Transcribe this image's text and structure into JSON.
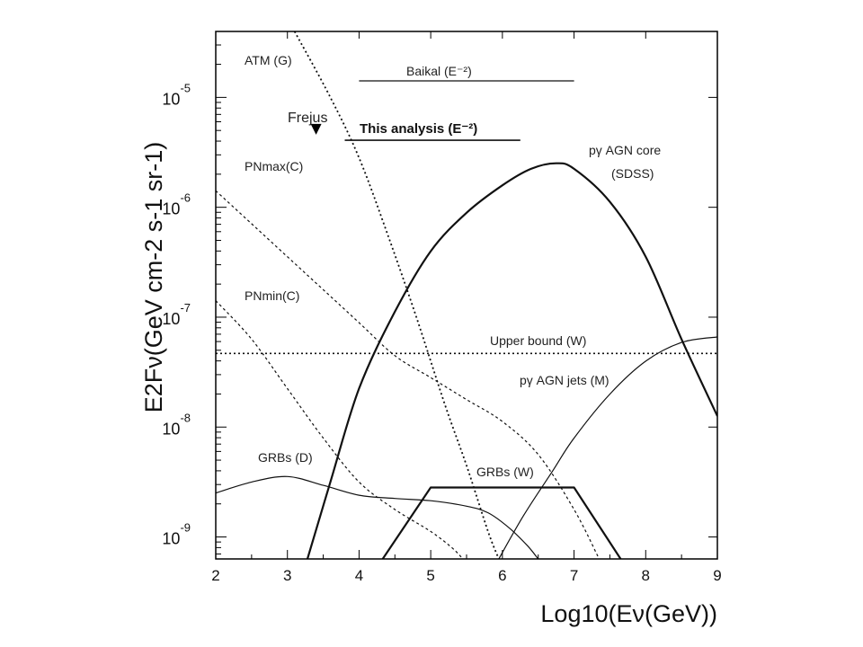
{
  "chart_data": {
    "type": "line",
    "xlabel": "Log10(Eν(GeV))",
    "ylabel": "E2Fν(GeV cm-2 s-1 sr-1)",
    "xlim": [
      2,
      9
    ],
    "ylim": [
      -9.2,
      -4.4
    ],
    "yscale": "log",
    "grid": false,
    "x_ticks": [
      2,
      3,
      4,
      5,
      6,
      7,
      8,
      9
    ],
    "y_ticks": [
      {
        "value": -9,
        "base": "10",
        "exponent": "-9"
      },
      {
        "value": -8,
        "base": "10",
        "exponent": "-8"
      },
      {
        "value": -7,
        "base": "10",
        "exponent": "-7"
      },
      {
        "value": -6,
        "base": "10",
        "exponent": "-6"
      },
      {
        "value": -5,
        "base": "10",
        "exponent": "-5"
      }
    ],
    "series": [
      {
        "name": "ATM (G)",
        "style": "dotted",
        "width": 1.8,
        "x": [
          3.1,
          3.6,
          4.0,
          4.4,
          4.8,
          5.2,
          5.5,
          5.8,
          5.95
        ],
        "y": [
          -4.4,
          -5.0,
          -5.55,
          -6.25,
          -7.0,
          -7.8,
          -8.35,
          -8.95,
          -9.2
        ]
      },
      {
        "name": "PNmax(C)",
        "style": "dashed",
        "width": 1.2,
        "x": [
          2.0,
          2.5,
          3.0,
          3.5,
          4.0,
          4.5,
          5.0,
          5.5,
          6.0,
          6.5,
          7.0,
          7.35
        ],
        "y": [
          -5.85,
          -6.15,
          -6.45,
          -6.75,
          -7.05,
          -7.35,
          -7.55,
          -7.75,
          -7.95,
          -8.25,
          -8.75,
          -9.2
        ]
      },
      {
        "name": "PNmin(C)",
        "style": "dashed",
        "width": 1.2,
        "x": [
          2.0,
          2.5,
          3.0,
          3.5,
          4.0,
          4.5,
          5.0,
          5.3,
          5.45
        ],
        "y": [
          -6.85,
          -7.2,
          -7.65,
          -8.1,
          -8.5,
          -8.75,
          -8.95,
          -9.1,
          -9.2
        ]
      },
      {
        "name": "Upper bound (W)",
        "style": "dotted",
        "width": 1.6,
        "x": [
          2.0,
          9.0
        ],
        "y": [
          -7.33,
          -7.33
        ]
      },
      {
        "name": "pγ AGN core (SDSS)",
        "style": "solid",
        "width": 2.2,
        "x": [
          3.28,
          3.6,
          4.0,
          4.5,
          5.0,
          5.5,
          6.0,
          6.4,
          6.75,
          7.0,
          7.5,
          8.0,
          8.5,
          9.0
        ],
        "y": [
          -9.2,
          -8.5,
          -7.65,
          -6.95,
          -6.4,
          -6.05,
          -5.8,
          -5.65,
          -5.6,
          -5.65,
          -5.95,
          -6.45,
          -7.2,
          -7.9
        ]
      },
      {
        "name": "pγ AGN jets (M)",
        "style": "solid",
        "width": 1.2,
        "x": [
          5.95,
          6.3,
          6.7,
          7.0,
          7.5,
          8.0,
          8.5,
          9.0
        ],
        "y": [
          -9.2,
          -8.8,
          -8.4,
          -8.1,
          -7.7,
          -7.4,
          -7.23,
          -7.18
        ]
      },
      {
        "name": "GRBs (D)",
        "style": "solid",
        "width": 1.2,
        "x": [
          2.0,
          2.5,
          3.0,
          3.5,
          4.0,
          4.5,
          5.0,
          5.5,
          5.8,
          6.1,
          6.35,
          6.5
        ],
        "y": [
          -8.6,
          -8.5,
          -8.45,
          -8.53,
          -8.62,
          -8.65,
          -8.67,
          -8.72,
          -8.78,
          -8.92,
          -9.08,
          -9.2
        ]
      },
      {
        "name": "GRBs (W)",
        "style": "solid",
        "width": 2.2,
        "x": [
          4.33,
          5.0,
          7.0,
          7.65
        ],
        "y": [
          -9.2,
          -8.55,
          -8.55,
          -9.2
        ]
      },
      {
        "name": "Baikal (E⁻²)",
        "style": "solid",
        "width": 1.3,
        "x": [
          4.0,
          7.0
        ],
        "y": [
          -4.85,
          -4.85
        ]
      },
      {
        "name": "This analysis (E⁻²)",
        "style": "solid",
        "width": 1.6,
        "x": [
          3.8,
          6.25
        ],
        "y": [
          -5.39,
          -5.39
        ]
      }
    ],
    "points": [
      {
        "name": "Frejus",
        "x": 3.4,
        "y": -5.29,
        "marker": "triangle-down"
      }
    ],
    "annotations": [
      {
        "text": "ATM (G)"
      },
      {
        "text": "Frejus"
      },
      {
        "text": "Baikal (E⁻²)"
      },
      {
        "text": "This analysis (E⁻²)"
      },
      {
        "text": "pγ AGN core"
      },
      {
        "text": "(SDSS)"
      },
      {
        "text": "PNmax(C)"
      },
      {
        "text": "PNmin(C)"
      },
      {
        "text": "Upper bound (W)"
      },
      {
        "text": "pγ AGN jets (M)"
      },
      {
        "text": "GRBs (D)"
      },
      {
        "text": "GRBs (W)"
      }
    ]
  }
}
